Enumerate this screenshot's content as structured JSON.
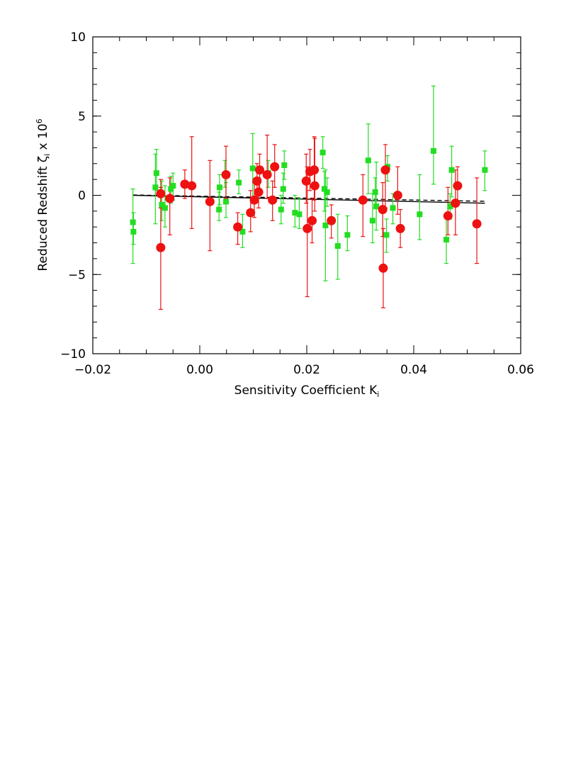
{
  "chart_data": {
    "type": "scatter",
    "title": "",
    "xlabel": {
      "text": "Sensitivity Coefficient K",
      "subscript": "i"
    },
    "ylabel": {
      "text": "Reduced Redshift ",
      "symbol": "ζ",
      "symbol_subscript": "i",
      "suffix": " x 10",
      "superscript": "6"
    },
    "xlim": [
      -0.02,
      0.06
    ],
    "ylim": [
      -10,
      10
    ],
    "xticks": [
      {
        "value": -0.02,
        "label": "−0.02"
      },
      {
        "value": 0.0,
        "label": "0.00"
      },
      {
        "value": 0.02,
        "label": "0.02"
      },
      {
        "value": 0.04,
        "label": "0.04"
      },
      {
        "value": 0.06,
        "label": "0.06"
      }
    ],
    "yticks": [
      {
        "value": -10,
        "label": "−10"
      },
      {
        "value": -5,
        "label": "−5"
      },
      {
        "value": 0,
        "label": "0"
      },
      {
        "value": 5,
        "label": "5"
      },
      {
        "value": 10,
        "label": "10"
      }
    ],
    "x_minor_step": 0.005,
    "y_minor_step": 1,
    "grid": false,
    "series": [
      {
        "marker": "square",
        "color": "#22dd22",
        "points": [
          {
            "x": -0.0125,
            "y": -1.7,
            "lo": -4.3,
            "hi": 0.4
          },
          {
            "x": -0.0124,
            "y": -2.3,
            "lo": -3.1,
            "hi": -1.1
          },
          {
            "x": -0.0081,
            "y": 1.4,
            "lo": 0.3,
            "hi": 2.9
          },
          {
            "x": -0.0083,
            "y": 0.5,
            "lo": -1.8,
            "hi": 2.6
          },
          {
            "x": -0.0071,
            "y": -0.6,
            "lo": -1.6,
            "hi": 0.9
          },
          {
            "x": -0.0065,
            "y": -0.8,
            "lo": -2.0,
            "hi": 0.6
          },
          {
            "x": -0.0054,
            "y": 0.4,
            "lo": -0.5,
            "hi": 1.2
          },
          {
            "x": -0.005,
            "y": 0.6,
            "lo": -0.3,
            "hi": 1.4
          },
          {
            "x": 0.0037,
            "y": 0.5,
            "lo": -0.6,
            "hi": 1.3
          },
          {
            "x": 0.0036,
            "y": -0.9,
            "lo": -1.6,
            "hi": 0.2
          },
          {
            "x": 0.0047,
            "y": 1.3,
            "lo": 0.5,
            "hi": 2.2
          },
          {
            "x": 0.0049,
            "y": -0.4,
            "lo": -1.4,
            "hi": 0.8
          },
          {
            "x": 0.0073,
            "y": 0.8,
            "lo": 0.1,
            "hi": 1.6
          },
          {
            "x": 0.008,
            "y": -2.3,
            "lo": -3.3,
            "hi": -1.2
          },
          {
            "x": 0.0099,
            "y": 1.7,
            "lo": -0.3,
            "hi": 3.9
          },
          {
            "x": 0.0128,
            "y": 1.4,
            "lo": 0.5,
            "hi": 2.2
          },
          {
            "x": 0.0152,
            "y": -0.9,
            "lo": -1.8,
            "hi": 0.0
          },
          {
            "x": 0.0158,
            "y": 1.9,
            "lo": 1.0,
            "hi": 2.8
          },
          {
            "x": 0.0156,
            "y": 0.4,
            "lo": -0.5,
            "hi": 1.4
          },
          {
            "x": 0.0178,
            "y": -1.1,
            "lo": -2.0,
            "hi": 0.0
          },
          {
            "x": 0.0186,
            "y": -1.2,
            "lo": -2.1,
            "hi": -0.2
          },
          {
            "x": 0.023,
            "y": 2.7,
            "lo": 1.7,
            "hi": 3.7
          },
          {
            "x": 0.0233,
            "y": 0.4,
            "lo": -1.0,
            "hi": 1.5
          },
          {
            "x": 0.0235,
            "y": -1.9,
            "lo": -5.4,
            "hi": 1.6
          },
          {
            "x": 0.0238,
            "y": 0.2,
            "lo": -0.7,
            "hi": 1.1
          },
          {
            "x": 0.0258,
            "y": -3.2,
            "lo": -5.3,
            "hi": -1.2
          },
          {
            "x": 0.0276,
            "y": -2.5,
            "lo": -3.5,
            "hi": -1.3
          },
          {
            "x": 0.0315,
            "y": 2.2,
            "lo": 0.1,
            "hi": 4.5
          },
          {
            "x": 0.0323,
            "y": -1.6,
            "lo": -3.0,
            "hi": 0.1
          },
          {
            "x": 0.0328,
            "y": 0.2,
            "lo": -0.8,
            "hi": 1.1
          },
          {
            "x": 0.033,
            "y": -0.7,
            "lo": -2.2,
            "hi": 2.1
          },
          {
            "x": 0.0349,
            "y": -2.5,
            "lo": -3.6,
            "hi": -1.5
          },
          {
            "x": 0.0351,
            "y": 1.8,
            "lo": 0.9,
            "hi": 2.5
          },
          {
            "x": 0.0361,
            "y": -0.8,
            "lo": -1.8,
            "hi": 0.1
          },
          {
            "x": 0.0411,
            "y": -1.2,
            "lo": -2.8,
            "hi": 1.3
          },
          {
            "x": 0.0437,
            "y": 2.8,
            "lo": 0.7,
            "hi": 6.9
          },
          {
            "x": 0.0461,
            "y": -2.8,
            "lo": -4.3,
            "hi": -1.3
          },
          {
            "x": 0.0471,
            "y": 1.6,
            "lo": -0.1,
            "hi": 3.1
          },
          {
            "x": 0.0468,
            "y": -0.7,
            "lo": -1.5,
            "hi": 0.1
          },
          {
            "x": 0.0533,
            "y": 1.6,
            "lo": 0.3,
            "hi": 2.8
          }
        ]
      },
      {
        "marker": "circle",
        "color": "#ee1111",
        "points": [
          {
            "x": -0.0073,
            "y": 0.1,
            "lo": -0.8,
            "hi": 1.0
          },
          {
            "x": -0.0073,
            "y": -3.3,
            "lo": -7.2,
            "hi": 0.5
          },
          {
            "x": -0.0056,
            "y": -0.2,
            "lo": -2.5,
            "hi": 1.1
          },
          {
            "x": -0.0028,
            "y": 0.7,
            "lo": -0.2,
            "hi": 1.6
          },
          {
            "x": -0.0015,
            "y": 0.6,
            "lo": -2.1,
            "hi": 3.7
          },
          {
            "x": 0.0019,
            "y": -0.4,
            "lo": -3.5,
            "hi": 2.2
          },
          {
            "x": 0.0049,
            "y": 1.3,
            "lo": -0.2,
            "hi": 3.1
          },
          {
            "x": 0.0071,
            "y": -2.0,
            "lo": -3.1,
            "hi": -1.1
          },
          {
            "x": 0.0095,
            "y": -1.1,
            "lo": -2.3,
            "hi": 0.3
          },
          {
            "x": 0.0102,
            "y": -0.3,
            "lo": -1.4,
            "hi": 0.8
          },
          {
            "x": 0.0107,
            "y": 0.9,
            "lo": -0.2,
            "hi": 2.0
          },
          {
            "x": 0.011,
            "y": 0.2,
            "lo": -0.8,
            "hi": 1.1
          },
          {
            "x": 0.0112,
            "y": 1.6,
            "lo": 0.4,
            "hi": 2.6
          },
          {
            "x": 0.0126,
            "y": 1.3,
            "lo": -0.2,
            "hi": 3.8
          },
          {
            "x": 0.0136,
            "y": -0.3,
            "lo": -1.6,
            "hi": 0.9
          },
          {
            "x": 0.014,
            "y": 1.8,
            "lo": 0.5,
            "hi": 3.2
          },
          {
            "x": 0.0199,
            "y": 0.9,
            "lo": -0.5,
            "hi": 2.6
          },
          {
            "x": 0.0201,
            "y": -2.1,
            "lo": -6.4,
            "hi": 1.8
          },
          {
            "x": 0.0206,
            "y": 1.5,
            "lo": 0.3,
            "hi": 2.9
          },
          {
            "x": 0.021,
            "y": -1.6,
            "lo": -3.0,
            "hi": -0.2
          },
          {
            "x": 0.0214,
            "y": 1.6,
            "lo": -0.3,
            "hi": 3.7
          },
          {
            "x": 0.0215,
            "y": 0.6,
            "lo": -1.0,
            "hi": 3.6
          },
          {
            "x": 0.0246,
            "y": -1.6,
            "lo": -2.7,
            "hi": -0.6
          },
          {
            "x": 0.0305,
            "y": -0.3,
            "lo": -2.6,
            "hi": 1.3
          },
          {
            "x": 0.0342,
            "y": -0.9,
            "lo": -2.6,
            "hi": 0.8
          },
          {
            "x": 0.0343,
            "y": -4.6,
            "lo": -7.1,
            "hi": -2.1
          },
          {
            "x": 0.0347,
            "y": 1.6,
            "lo": -0.8,
            "hi": 3.2
          },
          {
            "x": 0.037,
            "y": 0.0,
            "lo": -1.2,
            "hi": 1.8
          },
          {
            "x": 0.0375,
            "y": -2.1,
            "lo": -3.3,
            "hi": -0.9
          },
          {
            "x": 0.0464,
            "y": -1.3,
            "lo": -2.5,
            "hi": 0.5
          },
          {
            "x": 0.0478,
            "y": -0.5,
            "lo": -2.5,
            "hi": 1.6
          },
          {
            "x": 0.0482,
            "y": 0.6,
            "lo": -0.6,
            "hi": 1.8
          },
          {
            "x": 0.0518,
            "y": -1.8,
            "lo": -4.3,
            "hi": 1.1
          }
        ]
      }
    ],
    "fit_lines": [
      {
        "style": "solid",
        "color": "#000000",
        "x": [
          -0.0125,
          0.0533
        ],
        "y": [
          0.0,
          -0.5
        ]
      },
      {
        "style": "dashed",
        "color": "#000000",
        "x": [
          -0.0125,
          0.0533
        ],
        "y": [
          0.02,
          -0.38
        ]
      }
    ]
  }
}
